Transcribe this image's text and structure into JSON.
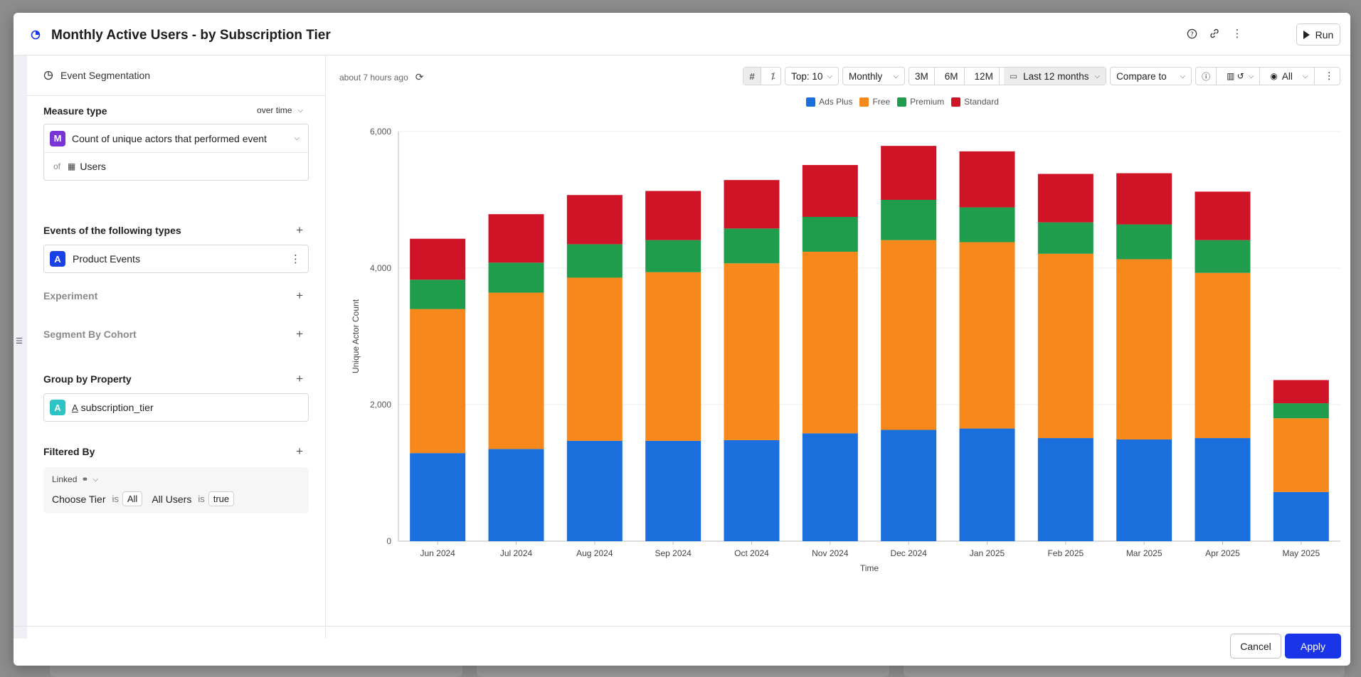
{
  "header": {
    "title": "Monthly Active Users - by Subscription Tier",
    "run_label": "Run"
  },
  "left": {
    "event_segmentation": "Event Segmentation",
    "measure_type": {
      "title": "Measure type",
      "mode": "over time",
      "badge": "M",
      "measure": "Count of unique actors that performed event",
      "of_label": "of",
      "entity": "Users"
    },
    "events": {
      "title": "Events of the following types",
      "badge": "A",
      "value": "Product Events"
    },
    "experiment": "Experiment",
    "segment_by_cohort": "Segment By Cohort",
    "group_by": {
      "title": "Group by Property",
      "badge": "A",
      "value": "subscription_tier"
    },
    "filtered_by": {
      "title": "Filtered By",
      "linked": "Linked",
      "filters": [
        {
          "field": "Choose Tier",
          "op": "is",
          "value": "All"
        },
        {
          "field": "All Users",
          "op": "is",
          "value": "true"
        }
      ]
    }
  },
  "toolbar": {
    "top": "Top: 10",
    "interval": "Monthly",
    "range_3m": "3M",
    "range_6m": "6M",
    "range_12m": "12M",
    "date_range": "Last 12 months",
    "compare": "Compare to",
    "visibility": "All"
  },
  "updated": "about 7 hours ago",
  "footer": {
    "cancel": "Cancel",
    "apply": "Apply"
  },
  "chart_data": {
    "type": "bar",
    "stacked": true,
    "xlabel": "Time",
    "ylabel": "Unique Actor Count",
    "ylim": [
      0,
      6000
    ],
    "yticks": [
      "0",
      "2,000",
      "4,000",
      "6,000"
    ],
    "legend_position": "top-center",
    "categories": [
      "Jun 2024",
      "Jul 2024",
      "Aug 2024",
      "Sep 2024",
      "Oct 2024",
      "Nov 2024",
      "Dec 2024",
      "Jan 2025",
      "Feb 2025",
      "Mar 2025",
      "Apr 2025",
      "May 2025"
    ],
    "series": [
      {
        "name": "Ads Plus",
        "color": "#1a6fdc",
        "values": [
          1290,
          1350,
          1470,
          1470,
          1480,
          1580,
          1630,
          1650,
          1510,
          1490,
          1510,
          720
        ]
      },
      {
        "name": "Free",
        "color": "#f7891c",
        "values": [
          2110,
          2290,
          2390,
          2470,
          2590,
          2660,
          2780,
          2730,
          2700,
          2640,
          2420,
          1080
        ]
      },
      {
        "name": "Premium",
        "color": "#1f9d4c",
        "values": [
          430,
          440,
          490,
          470,
          510,
          510,
          590,
          510,
          460,
          510,
          480,
          220
        ]
      },
      {
        "name": "Standard",
        "color": "#d01427",
        "values": [
          600,
          710,
          720,
          720,
          710,
          760,
          790,
          820,
          710,
          750,
          710,
          340
        ]
      }
    ]
  }
}
